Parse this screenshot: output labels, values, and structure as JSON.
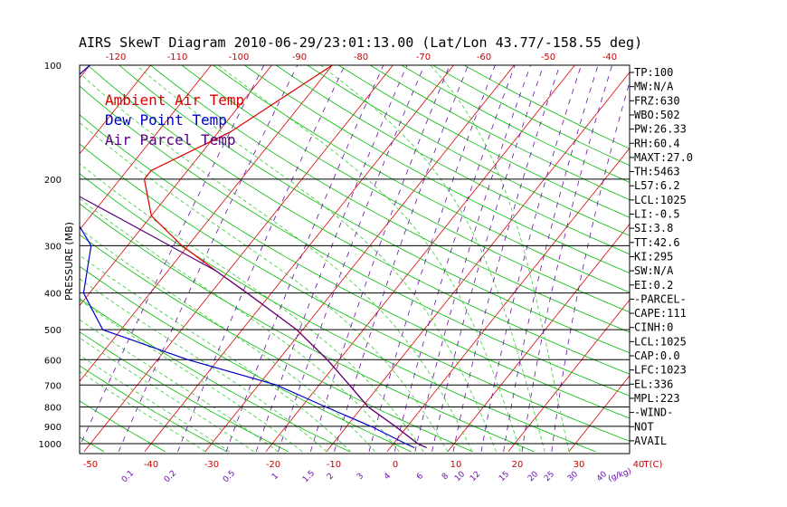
{
  "title": "AIRS SkewT Diagram 2010-06-29/23:01:13.00 (Lat/Lon 43.77/-158.55 deg)",
  "colors": {
    "ambient": "#dd0000",
    "dewpoint": "#0000cc",
    "parcel": "#5a0080",
    "isotherm": "#dd0000",
    "dry_adiabat": "#00bb00",
    "moist_adiabat": "#33cc33",
    "mixing_ratio": "#6a0dad",
    "isobar": "#000000"
  },
  "chart_data": {
    "type": "skewt",
    "title": "AIRS SkewT Diagram 2010-06-29/23:01:13.00 (Lat/Lon 43.77/-158.55 deg)",
    "ylabel": "PRESSURE (MB)",
    "ylim": [
      1050,
      100
    ],
    "pressure_ticks": [
      100,
      200,
      300,
      400,
      500,
      600,
      700,
      800,
      900,
      1000
    ],
    "temp_ticks_top": [
      "-120",
      "-110",
      "-100",
      "-90",
      "-80",
      "-70",
      "-60",
      "-50",
      "-40"
    ],
    "temp_ticks_bottom": [
      "-50",
      "-40",
      "-30",
      "-20",
      "-10",
      "0",
      "10",
      "20",
      "30",
      "40"
    ],
    "temp_axis_label": "T(C)",
    "mixing_ratio_ticks": [
      "0.1",
      "0.2",
      "0.5",
      "1",
      "1.5",
      "2",
      "3",
      "4",
      "6",
      "8",
      "10",
      "12",
      "15",
      "20",
      "25",
      "30",
      "40"
    ],
    "mixing_ratio_label": "(g/kg)",
    "legend": [
      {
        "label": "Ambient Air Temp",
        "color": "#dd0000"
      },
      {
        "label": "Dew Point Temp",
        "color": "#0000cc"
      },
      {
        "label": "Air Parcel Temp",
        "color": "#5a0080"
      }
    ],
    "series": [
      {
        "name": "Ambient Air Temp",
        "p": [
          100,
          150,
          190,
          200,
          250,
          300,
          350,
          400,
          500,
          600,
          700,
          800,
          900,
          1000,
          1025
        ],
        "t": [
          -50,
          -58,
          -66,
          -66,
          -60,
          -51,
          -42,
          -34,
          -21,
          -12,
          -5,
          1,
          8,
          14,
          16
        ]
      },
      {
        "name": "Dew Point Temp",
        "p": [
          100,
          125,
          150,
          190,
          230,
          300,
          400,
          500,
          600,
          700,
          800,
          900,
          1000,
          1025
        ],
        "t": [
          -90,
          -92,
          -103,
          -95,
          -76,
          -66,
          -61,
          -53,
          -35,
          -17,
          -6,
          4,
          12,
          14
        ]
      },
      {
        "name": "Air Parcel Temp",
        "p": [
          100,
          150,
          200,
          250,
          300,
          350,
          400,
          500,
          600,
          700,
          800,
          900,
          1000,
          1025
        ],
        "t": [
          -122,
          -100,
          -82,
          -66,
          -53,
          -42,
          -34,
          -21,
          -12,
          -5,
          1,
          8,
          14,
          16
        ]
      }
    ],
    "indices": [
      "TP:100",
      "MW:N/A",
      "FRZ:630",
      "WBO:502",
      "PW:26.33",
      "RH:60.4",
      "MAXT:27.0",
      "TH:5463",
      "L57:6.2",
      "LCL:1025",
      "LI:-0.5",
      "SI:3.8",
      "TT:42.6",
      "KI:295",
      "SW:N/A",
      "EI:0.2",
      "-PARCEL-",
      "CAPE:111",
      "CINH:0",
      "LCL:1025",
      "CAP:0.0",
      "LFC:1023",
      "EL:336",
      "MPL:223",
      "-WIND-",
      "NOT",
      "AVAIL"
    ],
    "grid": true,
    "legend_position": "top-left"
  }
}
